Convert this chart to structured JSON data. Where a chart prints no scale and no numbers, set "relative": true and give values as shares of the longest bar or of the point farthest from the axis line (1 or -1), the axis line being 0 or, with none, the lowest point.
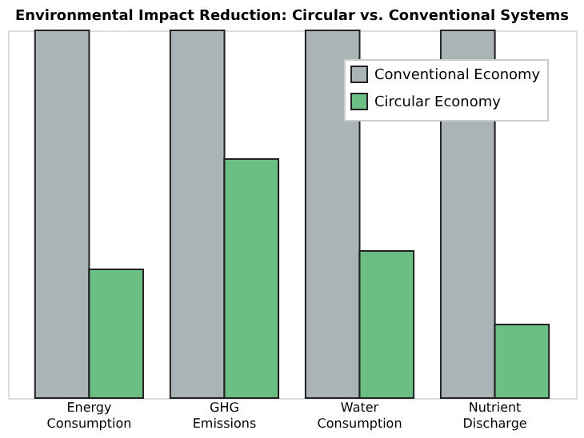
{
  "chart_data": {
    "type": "bar",
    "title": "Environmental Impact Reduction: Circular vs. Conventional Systems",
    "categories": [
      "Energy Consumption",
      "GHG Emissions",
      "Water Consumption",
      "Nutrient Discharge"
    ],
    "relative": true,
    "grid": "x",
    "legend": "top right",
    "series": [
      {
        "name": "Conventional Economy",
        "color": "#aab4b6",
        "values": [
          1,
          1,
          1,
          1
        ]
      },
      {
        "name": "Circular Economy",
        "color": "#6cbf84",
        "values": [
          0.35,
          0.65,
          0.4,
          0.2
        ]
      }
    ]
  }
}
